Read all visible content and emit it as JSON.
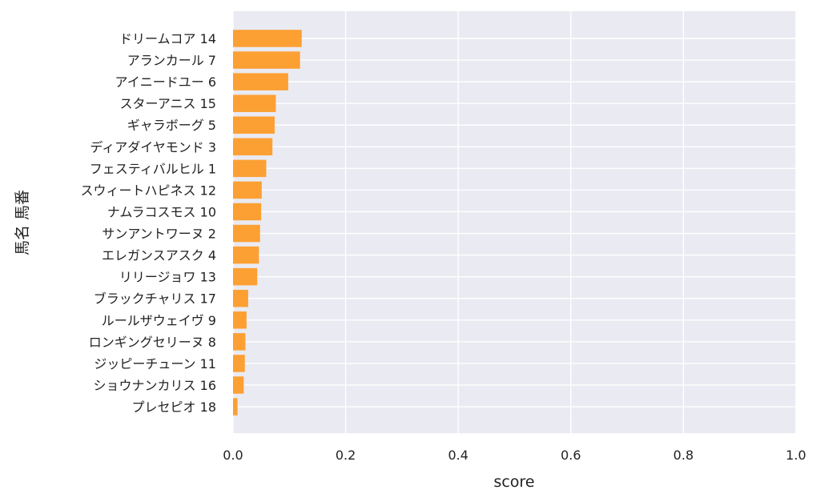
{
  "colors": {
    "plot_background": "#eaeaf2",
    "grid": "#ffffff",
    "bar": "#fca033",
    "text": "#222222"
  },
  "chart_data": {
    "type": "bar",
    "orientation": "horizontal",
    "categories": [
      "ドリームコア 14",
      "アランカール 7",
      "アイニードユー 6",
      "スターアニス 15",
      "ギャラボーグ 5",
      "ディアダイヤモンド 3",
      "フェスティバルヒル 1",
      "スウィートハピネス 12",
      "ナムラコスモス 10",
      "サンアントワーヌ 2",
      "エレガンスアスク 4",
      "リリージョワ 13",
      "ブラックチャリス 17",
      "ルールザウェイヴ 9",
      "ロンギングセリーヌ 8",
      "ジッピーチューン 11",
      "ショウナンカリス 16",
      "プレセピオ 18"
    ],
    "values": [
      0.122,
      0.119,
      0.098,
      0.076,
      0.074,
      0.07,
      0.059,
      0.051,
      0.05,
      0.048,
      0.046,
      0.043,
      0.027,
      0.024,
      0.022,
      0.021,
      0.019,
      0.008
    ],
    "xlabel": "score",
    "ylabel": "馬名 馬番",
    "xlim": [
      0,
      1.0
    ],
    "xticks": [
      "0.0",
      "0.2",
      "0.4",
      "0.6",
      "0.8",
      "1.0"
    ],
    "grid": true
  }
}
